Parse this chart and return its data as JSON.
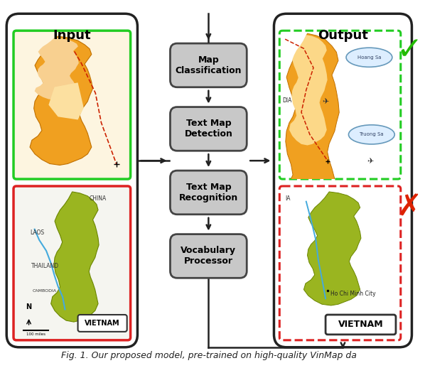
{
  "bg_color": "#ffffff",
  "input_label": "Input",
  "output_label": "Output",
  "pipeline_steps": [
    "Map\nClassification",
    "Text Map\nDetection",
    "Text Map\nRecognition",
    "Vocabulary\nProcessor"
  ],
  "green_border_color": "#22cc22",
  "red_border_color": "#dd2222",
  "check_color": "#22bb00",
  "cross_color": "#dd2200",
  "figsize": [
    5.98,
    5.18
  ],
  "dpi": 100,
  "caption": "Fig. 1. Our proposed model, pre-trained on high-quality VinMap da"
}
